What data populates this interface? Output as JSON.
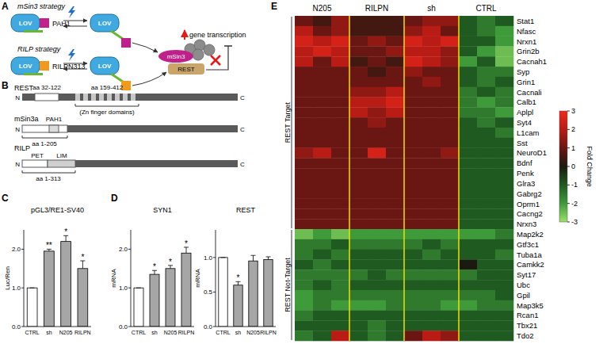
{
  "panel_labels": [
    "A",
    "B",
    "C",
    "D",
    "E"
  ],
  "diagram_a": {
    "strategies": [
      "mSin3 strategy",
      "RILP strategy"
    ],
    "lov": "LOV",
    "pah1": "PAH1",
    "rilp_fragment": "RILPN313",
    "msin3": "mSin3",
    "rest": "REST",
    "effect": "gene transcription"
  },
  "diagram_b": {
    "proteins": [
      {
        "name": "REST",
        "n": "N",
        "c": "C",
        "regions": [
          "aa 32-122",
          "aa 159-412"
        ],
        "note": "(Zn finger domains)"
      },
      {
        "name": "mSin3a",
        "n": "N",
        "c": "C",
        "domains": [
          "PAH1"
        ],
        "regions": [
          "aa 1-205"
        ]
      },
      {
        "name": "RILP",
        "n": "N",
        "c": "C",
        "domains": [
          "PET",
          "LIM"
        ],
        "regions": [
          "aa 1-313"
        ]
      }
    ]
  },
  "chart_data": [
    {
      "type": "bar",
      "title": "pGL3/RE1-SV40",
      "y_label": "Luc/Ren",
      "categories": [
        "CTRL",
        "sh",
        "N205",
        "RILPN"
      ],
      "values": [
        1,
        1.95,
        2.2,
        1.5
      ],
      "errors": [
        0,
        0.05,
        0.15,
        0.2
      ],
      "significance": [
        null,
        "**",
        "*",
        "*"
      ],
      "colors": [
        "#ffffff",
        "#a6a6a6",
        "#a6a6a6",
        "#a6a6a6"
      ],
      "ylim": [
        0,
        2.5
      ],
      "yticks": [
        {
          "value": 0,
          "label": "0.0"
        },
        {
          "value": 1,
          "label": "1.0"
        },
        {
          "value": 2,
          "label": "2.0"
        }
      ]
    },
    {
      "type": "bar",
      "title": "SYN1",
      "y_label": "mRNA",
      "categories": [
        "CTRL",
        "sh",
        "N205",
        "RILPN"
      ],
      "values": [
        1,
        1.35,
        1.5,
        1.9
      ],
      "errors": [
        0,
        0.1,
        0.08,
        0.15
      ],
      "significance": [
        null,
        "*",
        "*",
        "*"
      ],
      "colors": [
        "#ffffff",
        "#a6a6a6",
        "#a6a6a6",
        "#a6a6a6"
      ],
      "ylim": [
        0,
        2.5
      ],
      "yticks": [
        {
          "value": 0,
          "label": "0.0"
        },
        {
          "value": 1,
          "label": "1.0"
        },
        {
          "value": 2,
          "label": "2.0"
        }
      ]
    },
    {
      "type": "bar",
      "title": "REST",
      "y_label": "mRNA",
      "categories": [
        "CTRL",
        "sh",
        "N205",
        "RILPN"
      ],
      "values": [
        1,
        0.6,
        0.95,
        0.97
      ],
      "errors": [
        0,
        0.05,
        0.08,
        0.04
      ],
      "significance": [
        null,
        "*",
        null,
        null
      ],
      "colors": [
        "#ffffff",
        "#a6a6a6",
        "#a6a6a6",
        "#a6a6a6"
      ],
      "ylim": [
        0,
        1.4
      ],
      "yticks": [
        {
          "value": 0,
          "label": "0.0"
        },
        {
          "value": 0.5,
          "label": "0.5"
        },
        {
          "value": 1,
          "label": "1.0"
        }
      ]
    },
    {
      "type": "heatmap",
      "columns": [
        "N205",
        "RILPN",
        "sh",
        "CTRL"
      ],
      "colorbar": {
        "label": "Fold Change",
        "range": [
          -3,
          3
        ],
        "ticks": [
          3,
          2,
          1,
          0,
          -1,
          -2,
          -3
        ]
      },
      "row_groups": [
        {
          "label": "REST Target",
          "rows": [
            "Stat1",
            "Nfasc",
            "Nrxn1",
            "Grin2b",
            "Cacnah1",
            "Syp",
            "Grin1",
            "Cacnali",
            "Calb1",
            "Aplpl",
            "Syt4",
            "L1cam",
            "Sst",
            "NeuroD1",
            "Bdnf",
            "Penk",
            "Glra3",
            "Gabrg2",
            "Oprm1",
            "Cacng2",
            "Nrxn3"
          ],
          "values": [
            [
              [
                1,
                0.5,
                1.5
              ],
              [
                0.5,
                0.5,
                0.5
              ],
              [
                1,
                1.5,
                1.5
              ],
              [
                -1,
                -1.5,
                -1
              ]
            ],
            [
              [
                2,
                1,
                1.5
              ],
              [
                0.5,
                0.5,
                0.5
              ],
              [
                1.5,
                2,
                1
              ],
              [
                -1,
                -1.5,
                -2
              ]
            ],
            [
              [
                2.5,
                2,
                2.5
              ],
              [
                1,
                1.5,
                1
              ],
              [
                2.5,
                2,
                2.5
              ],
              [
                -1,
                -1,
                -2
              ]
            ],
            [
              [
                2,
                2.5,
                2
              ],
              [
                1,
                1,
                1.5
              ],
              [
                2,
                2,
                1.5
              ],
              [
                -1,
                -2,
                -2.5
              ]
            ],
            [
              [
                2,
                1,
                2
              ],
              [
                0.5,
                1,
                0.5
              ],
              [
                2.5,
                2,
                1.5
              ],
              [
                -2,
                -1,
                -2.5
              ]
            ],
            [
              [
                1,
                1,
                1
              ],
              [
                1,
                0.5,
                1
              ],
              [
                1.5,
                1,
                1
              ],
              [
                -1,
                -1.5,
                -1.5
              ]
            ],
            [
              [
                1,
                1,
                1
              ],
              [
                1,
                1,
                1
              ],
              [
                1,
                1.5,
                1
              ],
              [
                -1,
                -1.5,
                -1
              ]
            ],
            [
              [
                1,
                1,
                1
              ],
              [
                1.5,
                1.5,
                2
              ],
              [
                1,
                1,
                1
              ],
              [
                -1.5,
                -1,
                -1.5
              ]
            ],
            [
              [
                1,
                1,
                1
              ],
              [
                2,
                2,
                2.5
              ],
              [
                1,
                1,
                1
              ],
              [
                -1.5,
                -2,
                -1.5
              ]
            ],
            [
              [
                1,
                1,
                1
              ],
              [
                2,
                1.5,
                2
              ],
              [
                1,
                1,
                1
              ],
              [
                -1.5,
                -1.5,
                -2
              ]
            ],
            [
              [
                1,
                1,
                1
              ],
              [
                1,
                1.5,
                1
              ],
              [
                1,
                1,
                1
              ],
              [
                -1,
                -1.5,
                -1
              ]
            ],
            [
              [
                1,
                1,
                1
              ],
              [
                1,
                1,
                1
              ],
              [
                1,
                1,
                1
              ],
              [
                -1,
                -1,
                -1.5
              ]
            ],
            [
              [
                1,
                1,
                1
              ],
              [
                1,
                1,
                1
              ],
              [
                1,
                1,
                1
              ],
              [
                -1,
                -1,
                -1
              ]
            ],
            [
              [
                1.5,
                2,
                1
              ],
              [
                1,
                2.5,
                1
              ],
              [
                1,
                1,
                1.5
              ],
              [
                -1,
                -1,
                -1
              ]
            ],
            [
              [
                1,
                1,
                1
              ],
              [
                1,
                1,
                1
              ],
              [
                1,
                1,
                1
              ],
              [
                -1,
                -1,
                -1
              ]
            ],
            [
              [
                1,
                1,
                1
              ],
              [
                1,
                1,
                1
              ],
              [
                1,
                1,
                1
              ],
              [
                -1,
                -1,
                -1
              ]
            ],
            [
              [
                1,
                1,
                1
              ],
              [
                1,
                1,
                1
              ],
              [
                1,
                1,
                1
              ],
              [
                -1,
                -1,
                -1
              ]
            ],
            [
              [
                1,
                1,
                1
              ],
              [
                1,
                1,
                1
              ],
              [
                1,
                1,
                1
              ],
              [
                -1,
                -1,
                -1
              ]
            ],
            [
              [
                1,
                1,
                1
              ],
              [
                1,
                1,
                1
              ],
              [
                1,
                1,
                1
              ],
              [
                -1,
                -1,
                -1
              ]
            ],
            [
              [
                1,
                1,
                1
              ],
              [
                1,
                1,
                1
              ],
              [
                1,
                1,
                1
              ],
              [
                -1,
                -1,
                -1
              ]
            ],
            [
              [
                1,
                1,
                1
              ],
              [
                1,
                1,
                1
              ],
              [
                1,
                1,
                1
              ],
              [
                -1,
                -1,
                -1
              ]
            ]
          ]
        },
        {
          "label": "REST Not-Target",
          "rows": [
            "Map2k2",
            "Gtf3c1",
            "Tuba1a",
            "Camkk2",
            "Syt17",
            "Ubc",
            "Gpil",
            "Map3k5",
            "Rcan1",
            "Tbx21",
            "Tdo2"
          ],
          "values": [
            [
              [
                -2.5,
                -2,
                -2.5
              ],
              [
                -2,
                -2,
                -2
              ],
              [
                -2,
                -2,
                -2
              ],
              [
                -2,
                -2,
                -1.5
              ]
            ],
            [
              [
                -1.5,
                -1.5,
                -1
              ],
              [
                -1.5,
                -1.5,
                -1.5
              ],
              [
                -1.5,
                -1,
                -1.5
              ],
              [
                -1,
                -1,
                -1
              ]
            ],
            [
              [
                -1.5,
                -1,
                -1.5
              ],
              [
                -1,
                -1,
                -1
              ],
              [
                -1,
                -1.5,
                -1
              ],
              [
                -1,
                -1,
                -1.5
              ]
            ],
            [
              [
                -1,
                -1.5,
                -1
              ],
              [
                -1,
                -1,
                -1
              ],
              [
                -1,
                -1,
                -1
              ],
              [
                0,
                -1,
                -1
              ]
            ],
            [
              [
                -1.5,
                -1.5,
                -1.5
              ],
              [
                -1.5,
                -1,
                -1.5
              ],
              [
                -1.5,
                -1.5,
                -1.5
              ],
              [
                -1.5,
                -1,
                -1
              ]
            ],
            [
              [
                -1.5,
                -1,
                -1.5
              ],
              [
                -1,
                -1,
                -1
              ],
              [
                -1,
                -1,
                -1
              ],
              [
                -1,
                -1,
                -1
              ]
            ],
            [
              [
                -2,
                -1.5,
                -1.5
              ],
              [
                -1.5,
                -1.5,
                -1.5
              ],
              [
                -1.5,
                -1.5,
                -1.5
              ],
              [
                -1.5,
                -1.5,
                -1
              ]
            ],
            [
              [
                -2,
                -1.5,
                -2
              ],
              [
                -2,
                -2,
                -1.5
              ],
              [
                -1.5,
                -1.5,
                -2
              ],
              [
                -2,
                -1.5,
                -1.5
              ]
            ],
            [
              [
                -1.5,
                -1,
                -1
              ],
              [
                -1,
                -1,
                -1
              ],
              [
                -1,
                -1,
                -1
              ],
              [
                -1,
                -1,
                -1
              ]
            ],
            [
              [
                -1,
                -1,
                -1
              ],
              [
                -1,
                -1.5,
                -1
              ],
              [
                -1,
                -1,
                -1
              ],
              [
                -1,
                -1,
                -1
              ]
            ],
            [
              [
                -1.5,
                -1,
                2
              ],
              [
                -1,
                -1.5,
                -1
              ],
              [
                1,
                2,
                1.5
              ],
              [
                -1,
                -1,
                -1
              ]
            ]
          ]
        }
      ]
    }
  ]
}
